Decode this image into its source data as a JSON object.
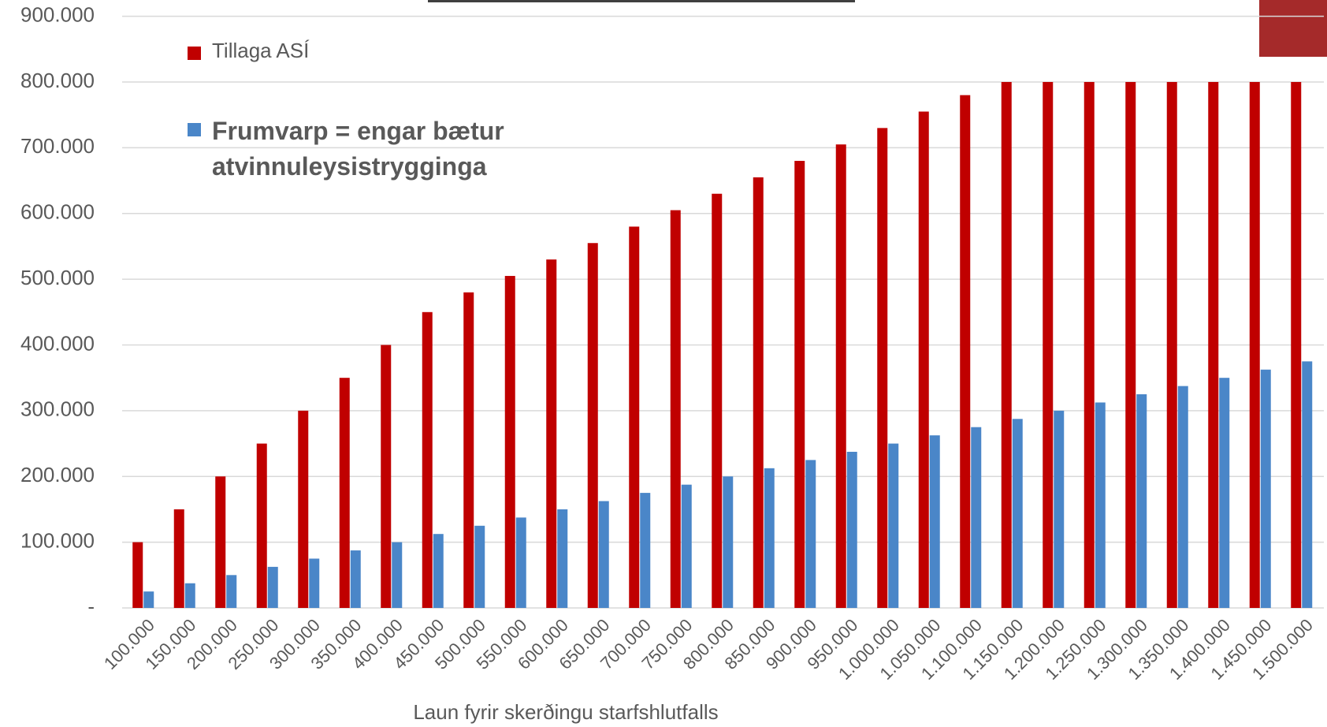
{
  "chart_data": {
    "type": "bar",
    "x_label": "Laun fyrir skerðingu starfshlutfalls",
    "categories": [
      "100.000",
      "150.000",
      "200.000",
      "250.000",
      "300.000",
      "350.000",
      "400.000",
      "450.000",
      "500.000",
      "550.000",
      "600.000",
      "650.000",
      "700.000",
      "750.000",
      "800.000",
      "850.000",
      "900.000",
      "950.000",
      "1.000.000",
      "1.050.000",
      "1.100.000",
      "1.150.000",
      "1.200.000",
      "1.250.000",
      "1.300.000",
      "1.350.000",
      "1.400.000",
      "1.450.000",
      "1.500.000"
    ],
    "series": [
      {
        "name": "Tillaga ASÍ",
        "color": "#c00000",
        "values": [
          100000,
          150000,
          200000,
          250000,
          300000,
          350000,
          400000,
          450000,
          480000,
          505000,
          530000,
          555000,
          580000,
          605000,
          630000,
          655000,
          680000,
          705000,
          730000,
          755000,
          780000,
          800000,
          800000,
          800000,
          800000,
          800000,
          800000,
          800000,
          800000
        ]
      },
      {
        "name": "Frumvarp = engar bætur atvinnuleysistrygginga",
        "color": "#4a86c8",
        "values": [
          25000,
          37500,
          50000,
          62500,
          75000,
          87500,
          100000,
          112500,
          125000,
          137500,
          150000,
          162500,
          175000,
          187500,
          200000,
          212500,
          225000,
          237500,
          250000,
          262500,
          275000,
          287500,
          300000,
          312500,
          325000,
          337500,
          350000,
          362500,
          375000
        ]
      }
    ],
    "ylim": [
      0,
      900000
    ],
    "yticks": [
      {
        "value": 0,
        "label": "-"
      },
      {
        "value": 100000,
        "label": "100.000"
      },
      {
        "value": 200000,
        "label": "200.000"
      },
      {
        "value": 300000,
        "label": "300.000"
      },
      {
        "value": 400000,
        "label": "400.000"
      },
      {
        "value": 500000,
        "label": "500.000"
      },
      {
        "value": 600000,
        "label": "600.000"
      },
      {
        "value": 700000,
        "label": "700.000"
      },
      {
        "value": 800000,
        "label": "800.000"
      },
      {
        "value": 900000,
        "label": "900.000"
      }
    ],
    "grid": true
  }
}
